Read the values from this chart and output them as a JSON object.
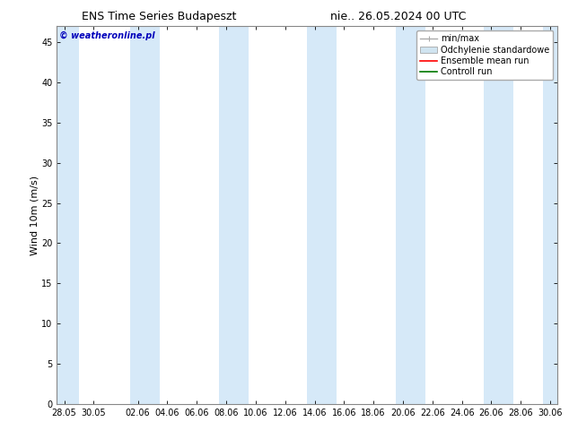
{
  "title_left": "ENS Time Series Budapeszt",
  "title_right": "nie.. 26.05.2024 00 UTC",
  "ylabel": "Wind 10m (m/s)",
  "watermark": "© weatheronline.pl",
  "ylim": [
    0,
    47
  ],
  "yticks": [
    0,
    5,
    10,
    15,
    20,
    25,
    30,
    35,
    40,
    45
  ],
  "bg_color": "#ffffff",
  "plot_bg_color": "#ffffff",
  "shaded_band_color": "#d6e9f8",
  "xtick_labels": [
    "28.05",
    "30.05",
    "02.06",
    "04.06",
    "06.06",
    "08.06",
    "10.06",
    "12.06",
    "14.06",
    "16.06",
    "18.06",
    "20.06",
    "22.06",
    "24.06",
    "26.06",
    "28.06",
    "30.06"
  ],
  "xtick_positions": [
    0,
    2,
    5,
    7,
    9,
    11,
    13,
    15,
    17,
    19,
    21,
    23,
    25,
    27,
    29,
    31,
    33
  ],
  "shaded_bands": [
    [
      -0.5,
      1.0
    ],
    [
      4.5,
      6.5
    ],
    [
      10.5,
      12.5
    ],
    [
      16.5,
      18.5
    ],
    [
      22.5,
      24.5
    ],
    [
      28.5,
      30.5
    ],
    [
      32.5,
      33.5
    ]
  ],
  "legend_entries": [
    {
      "label": "min/max",
      "color": "#aaaaaa",
      "lw": 1,
      "style": "minmax"
    },
    {
      "label": "Odchylenie standardowe",
      "color": "#d0e4f0",
      "lw": 8,
      "style": "band"
    },
    {
      "label": "Ensemble mean run",
      "color": "#ff0000",
      "lw": 1.2,
      "style": "line"
    },
    {
      "label": "Controll run",
      "color": "#007700",
      "lw": 1.2,
      "style": "line"
    }
  ],
  "title_fontsize": 9,
  "axis_label_fontsize": 8,
  "tick_fontsize": 7,
  "legend_fontsize": 7,
  "watermark_fontsize": 7,
  "watermark_color": "#0000bb",
  "spine_color": "#888888",
  "xlim_min": -0.5,
  "xlim_max": 33.5
}
